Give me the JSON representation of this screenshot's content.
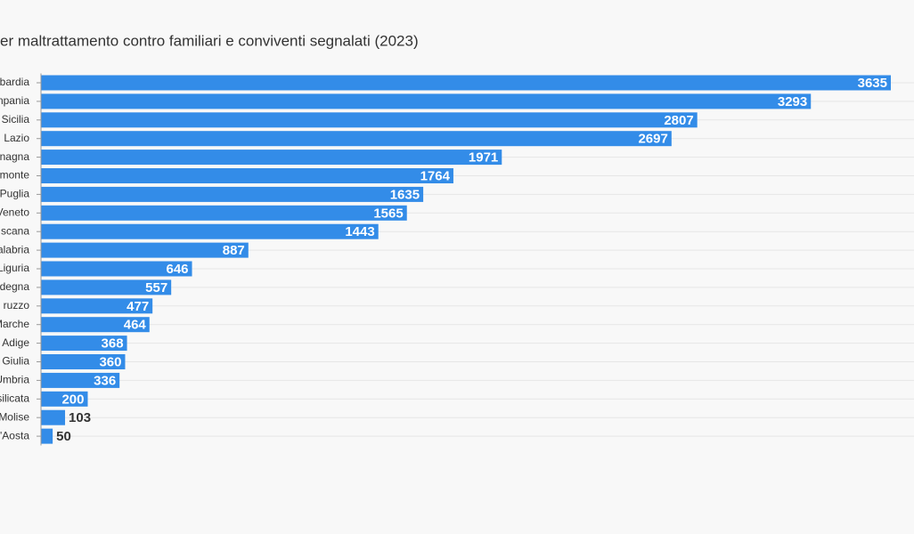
{
  "chart_data": {
    "type": "bar",
    "orientation": "horizontal",
    "title": "er maltrattamento contro familiari e conviventi segnalati (2023)",
    "categories": [
      "bardia",
      "npania",
      "Sicilia",
      "Lazio",
      "nagna",
      "monte",
      "Puglia",
      "Veneto",
      "scana",
      "alabria",
      "Liguria",
      "degna",
      "ruzzo",
      "Marche",
      "Adige",
      "Giulia",
      "Umbria",
      "silicata",
      "Molise",
      "'Aosta"
    ],
    "values": [
      3635,
      3293,
      2807,
      2697,
      1971,
      1764,
      1635,
      1565,
      1443,
      887,
      646,
      557,
      477,
      464,
      368,
      360,
      336,
      200,
      103,
      50
    ],
    "color": "#338ce8",
    "xlim": [
      0,
      3635
    ],
    "grid": true
  }
}
